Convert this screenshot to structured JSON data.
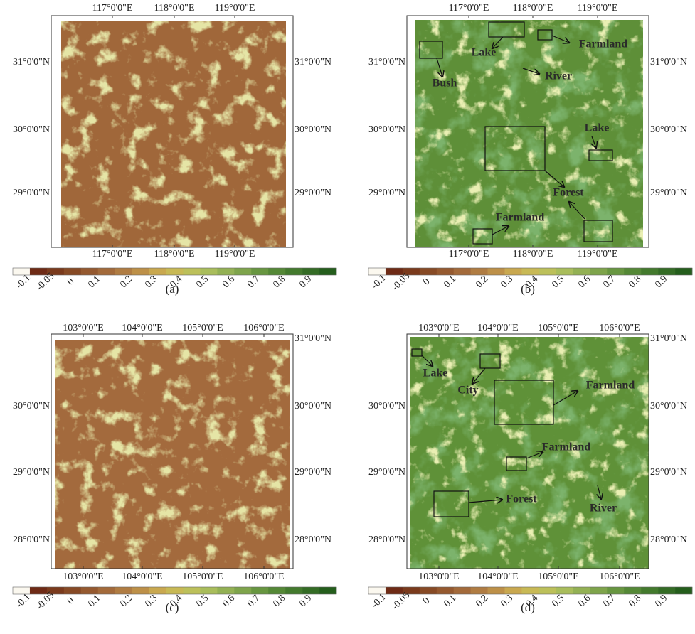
{
  "panels": [
    {
      "caption": "(a)",
      "top_ticks": [
        "117°0'0\"E",
        "118°0'0\"E",
        "119°0'0\"E"
      ],
      "bottom_ticks": [
        "117°0'0\"E",
        "118°0'0\"E",
        "119°0'0\"E"
      ],
      "left_ticks": [
        "31°0'0\"N",
        "30°0'0\"N",
        "29°0'0\"N"
      ],
      "right_ticks": [
        "31°0'0\"N",
        "30°0'0\"N",
        "29°0'0\"N"
      ],
      "annotations": [],
      "colorbar_labels": [
        "-0.1",
        "-0.05",
        "0",
        "0.1",
        "0.2",
        "0.3",
        "0.4",
        "0.5",
        "0.6",
        "0.7",
        "0.8",
        "0.9"
      ]
    },
    {
      "caption": "(b)",
      "top_ticks": [
        "117°0'0\"E",
        "118°0'0\"E",
        "119°0'0\"E"
      ],
      "bottom_ticks": [
        "117°0'0\"E",
        "118°0'0\"E",
        "119°0'0\"E"
      ],
      "left_ticks": [
        "31°0'0\"N",
        "30°0'0\"N",
        "29°0'0\"N"
      ],
      "right_ticks": [
        "31°0'0\"N",
        "30°0'0\"N",
        "29°0'0\"N"
      ],
      "annotations": [
        "Lake",
        "Farmland",
        "Bush",
        "River",
        "Lake",
        "Forest",
        "Farmland"
      ],
      "colorbar_labels": [
        "-0.1",
        "-0.05",
        "0",
        "0.1",
        "0.2",
        "0.3",
        "0.4",
        "0.5",
        "0.6",
        "0.7",
        "0.8",
        "0.9"
      ]
    },
    {
      "caption": "(c)",
      "top_ticks": [
        "103°0'0\"E",
        "104°0'0\"E",
        "105°0'0\"E",
        "106°0'0\"E"
      ],
      "bottom_ticks": [
        "103°0'0\"E",
        "104°0'0\"E",
        "105°0'0\"E",
        "106°0'0\"E"
      ],
      "left_ticks": [
        "30°0'0\"N",
        "29°0'0\"N",
        "28°0'0\"N"
      ],
      "right_ticks": [
        "31°0'0\"N",
        "30°0'0\"N",
        "29°0'0\"N",
        "28°0'0\"N"
      ],
      "annotations": [],
      "colorbar_labels": [
        "-0.1",
        "-0.05",
        "0",
        "0.1",
        "0.2",
        "0.3",
        "0.4",
        "0.5",
        "0.6",
        "0.7",
        "0.8",
        "0.9"
      ]
    },
    {
      "caption": "(d)",
      "top_ticks": [
        "103°0'0\"E",
        "104°0'0\"E",
        "105°0'0\"E",
        "106°0'0\"E"
      ],
      "bottom_ticks": [
        "103°0'0\"E",
        "104°0'0\"E",
        "105°0'0\"E",
        "106°0'0\"E"
      ],
      "left_ticks": [
        "30°0'0\"N",
        "29°0'0\"N",
        "28°0'0\"N"
      ],
      "right_ticks": [
        "31°0'0\"N",
        "30°0'0\"N",
        "29°0'0\"N",
        "28°0'0\"N"
      ],
      "annotations": [
        "Lake",
        "City",
        "Farmland",
        "Farmland",
        "Forest",
        "River"
      ],
      "colorbar_labels": [
        "-0.1",
        "-0.05",
        "0",
        "0.1",
        "0.2",
        "0.3",
        "0.4",
        "0.5",
        "0.6",
        "0.7",
        "0.8",
        "0.9"
      ]
    }
  ]
}
